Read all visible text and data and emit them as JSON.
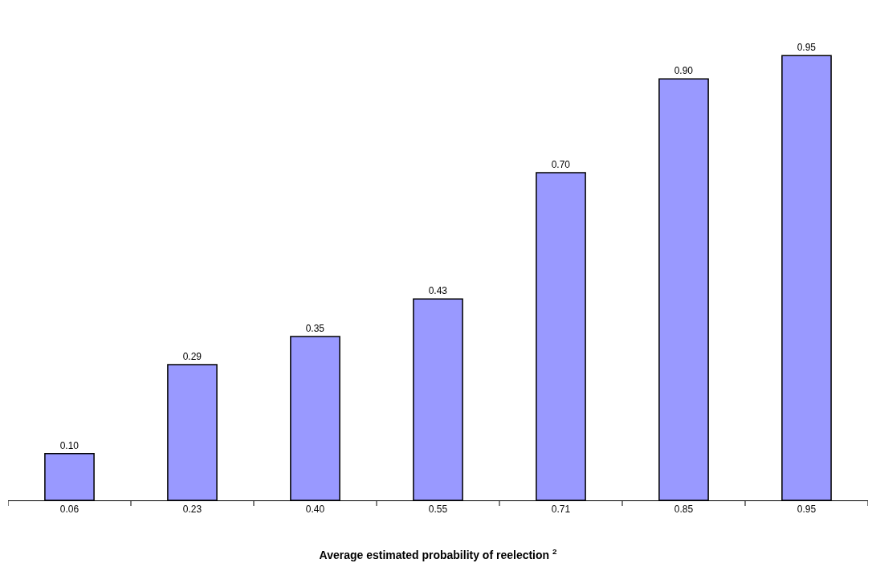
{
  "chart_data": {
    "type": "bar",
    "xlabel": "Average estimated probability of reelection $^{2}$",
    "categories": [
      "0.06",
      "0.23",
      "0.40",
      "0.55",
      "0.71",
      "0.85",
      "0.95"
    ],
    "values": [
      0.1,
      0.29,
      0.35,
      0.43,
      0.7,
      0.9,
      0.95
    ],
    "value_labels": [
      "0.10",
      "0.29",
      "0.35",
      "0.43",
      "0.70",
      "0.90",
      "0.95"
    ],
    "color": "#9999ff"
  }
}
